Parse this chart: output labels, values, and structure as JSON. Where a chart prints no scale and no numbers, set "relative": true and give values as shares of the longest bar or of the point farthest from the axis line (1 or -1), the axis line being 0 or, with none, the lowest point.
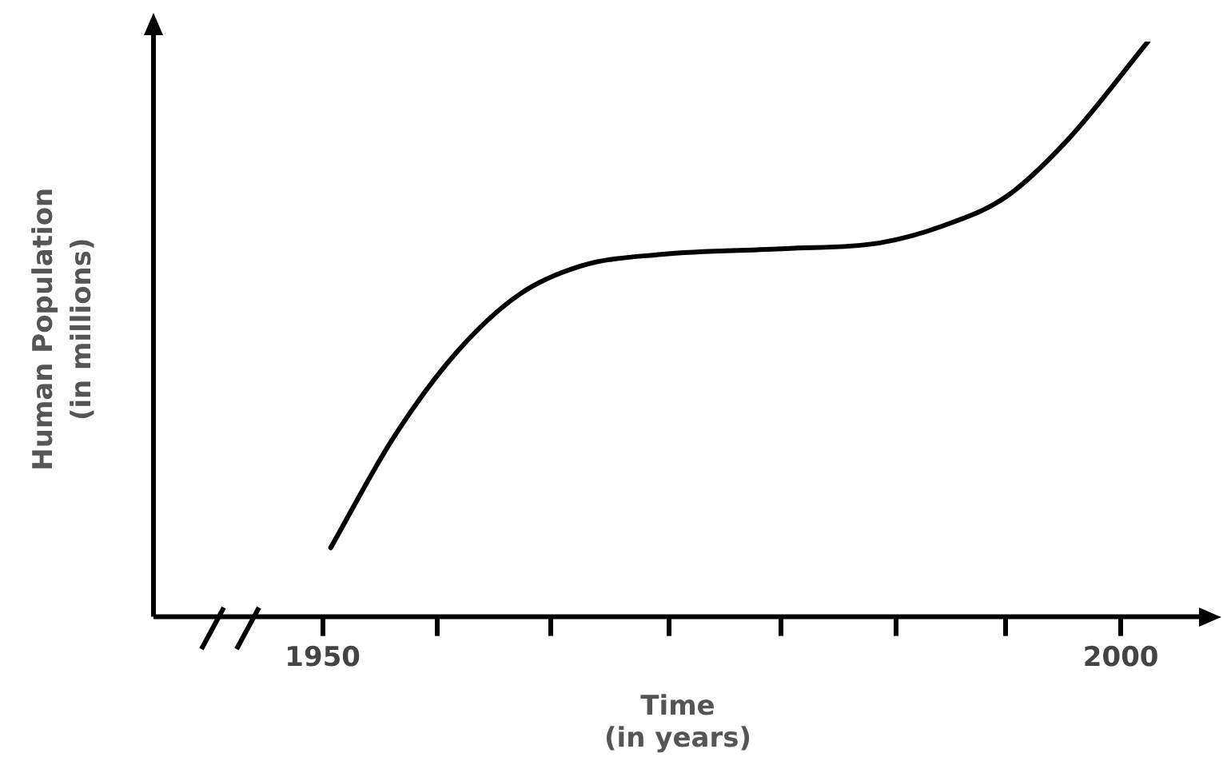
{
  "chart_data": {
    "type": "line",
    "xlabel": "Time\n(in years)",
    "ylabel": "Human Population\n(in millions)",
    "relative": true,
    "x": [
      1950.5,
      1954.4,
      1958.4,
      1962.3,
      1966.2,
      1971.2,
      1979.0,
      1984.9,
      1988.9,
      1992.8,
      1996.7,
      2001.7
    ],
    "series": [
      {
        "color": "#000000",
        "values": [
          0.12,
          0.31,
          0.46,
          0.56,
          0.61,
          0.63,
          0.64,
          0.65,
          0.68,
          0.73,
          0.83,
          1
        ]
      }
    ],
    "xlim": [
      1939.4,
      2005.1
    ],
    "xticks": [
      1950,
      {
        "value": 1957.2,
        "label": null
      },
      {
        "value": 1964.3,
        "label": null
      },
      {
        "value": 1971.7,
        "label": null
      },
      {
        "value": 1978.7,
        "label": null
      },
      {
        "value": 1985.9,
        "label": null
      },
      {
        "value": 1992.8,
        "label": null
      },
      2000
    ],
    "grid": false,
    "legend": false,
    "marker": "none",
    "line_style": "solid"
  }
}
